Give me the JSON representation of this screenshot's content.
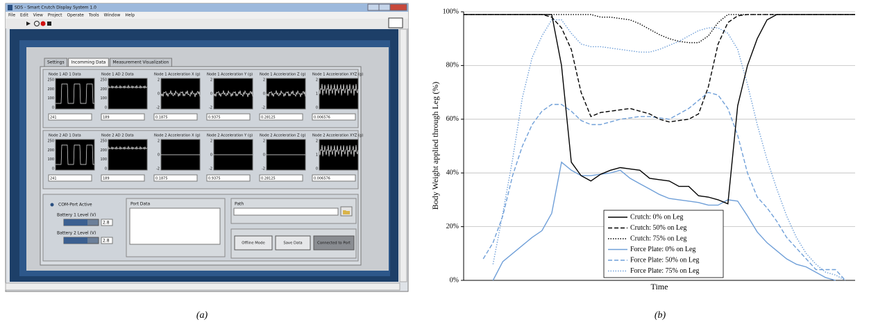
{
  "screenshot": {
    "window_title": "SDS - Smart Crutch Display System 1.0",
    "menu": [
      "File",
      "Edit",
      "View",
      "Project",
      "Operate",
      "Tools",
      "Window",
      "Help"
    ],
    "tabs": [
      "Settings",
      "Incomming Data",
      "Measurement Visualization"
    ],
    "nodes": [
      {
        "graphs": [
          {
            "title": "Node 1 AD 1 Data",
            "ticks": [
              250,
              200,
              100,
              0
            ],
            "value": 241
          },
          {
            "title": "Node 1 AD 2 Data",
            "ticks": [
              250,
              200,
              100,
              0
            ],
            "value": 189
          },
          {
            "title": "Node 1 Acceleration X (g)",
            "ticks": [
              2,
              0,
              -2
            ],
            "value": 0.1875
          },
          {
            "title": "Node 1 Acceleration Y (g)",
            "ticks": [
              2,
              0,
              -2
            ],
            "value": 0.9375
          },
          {
            "title": "Node 1 Acceleration Z (g)",
            "ticks": [
              2,
              0,
              -2
            ],
            "value": 0.28125
          },
          {
            "title": "Node 1 Acceleration XYZ (g)",
            "ticks": [
              2,
              1,
              0
            ],
            "value": 0.006576
          }
        ]
      },
      {
        "graphs": [
          {
            "title": "Node 2 AD 1 Data",
            "ticks": [
              250,
              200,
              100,
              0
            ],
            "value": 241
          },
          {
            "title": "Node 2 AD 2 Data",
            "ticks": [
              250,
              200,
              100,
              0
            ],
            "value": 189
          },
          {
            "title": "Node 2 Acceleration X (g)",
            "ticks": [
              2,
              0,
              -2
            ],
            "value": 0.1875
          },
          {
            "title": "Node 2 Acceleration Y (g)",
            "ticks": [
              2,
              0,
              -2
            ],
            "value": 0.9375
          },
          {
            "title": "Node 2 Acceleration Z (g)",
            "ticks": [
              2,
              0,
              -2
            ],
            "value": 0.28125
          },
          {
            "title": "Node 2 Acceleration XYZ (g)",
            "ticks": [
              2,
              1,
              0
            ],
            "value": 0.006576
          }
        ]
      }
    ],
    "com_port": "COM-Port Active",
    "battery1_label": "Battery 1 Level (V)",
    "battery1_value": 2.8,
    "battery2_label": "Battery 2 Level (V)",
    "battery2_value": 2.8,
    "port_data": "Port Data",
    "path": "Path",
    "buttons": [
      "Offline Mode",
      "Save Data",
      "Connected to Port"
    ]
  },
  "captions": [
    "(a)",
    "(b)"
  ],
  "chart_data": {
    "type": "line",
    "ylabel": "Body Weight applied through Leg (%)",
    "xlabel": "Time",
    "categories": [
      null,
      null,
      null,
      null,
      null,
      null,
      null,
      null,
      null,
      null,
      null,
      null,
      null,
      null,
      null,
      null,
      null,
      null,
      null,
      null,
      null,
      null,
      null,
      null,
      null,
      null,
      null,
      null,
      null,
      null,
      null,
      null,
      null,
      null,
      null,
      null,
      null,
      null,
      null,
      null,
      null
    ],
    "ylim": [
      0,
      100
    ],
    "yticks": [
      {
        "value": 0,
        "label": "0%"
      },
      {
        "value": 20,
        "label": "20%"
      },
      {
        "value": 40,
        "label": "40%"
      },
      {
        "value": 60,
        "label": "60%"
      },
      {
        "value": 80,
        "label": "80%"
      },
      {
        "value": 100,
        "label": "100%"
      }
    ],
    "grid": true,
    "legend": "lower center",
    "series": [
      {
        "name": "Crutch: 0% on Leg",
        "color": "#000000",
        "dash": "solid",
        "values": [
          99,
          99,
          99,
          99,
          99,
          99,
          99,
          99,
          99,
          99,
          80,
          44,
          39,
          37,
          39.5,
          41,
          42,
          41.5,
          41,
          38,
          37.5,
          37,
          35,
          35,
          31.5,
          31,
          30,
          28.5,
          65,
          80,
          90,
          97,
          99,
          99,
          99,
          99,
          99,
          99,
          99,
          99,
          99
        ]
      },
      {
        "name": "Crutch: 50% on Leg",
        "color": "#000000",
        "dash": "dashed",
        "values": [
          99,
          99,
          99,
          99,
          99,
          99,
          99,
          99,
          99,
          98,
          94,
          86,
          70,
          61,
          62.5,
          63,
          63.5,
          64,
          63,
          62,
          60,
          59,
          59.5,
          60,
          62,
          72,
          88,
          96,
          98.5,
          99,
          99,
          99,
          99,
          99,
          99,
          99,
          99,
          99,
          99,
          99,
          99
        ]
      },
      {
        "name": "Crutch: 75% on Leg",
        "color": "#000000",
        "dash": "dotted",
        "values": [
          99,
          99,
          99,
          99,
          99,
          99,
          99,
          99,
          99,
          99,
          99,
          99,
          99,
          99,
          98,
          98,
          97.5,
          97,
          95.5,
          93.5,
          91.5,
          90,
          89,
          88.5,
          88.5,
          91,
          96,
          99,
          99,
          99,
          99,
          99,
          99,
          99,
          99,
          99,
          99,
          99,
          99,
          99,
          99
        ]
      },
      {
        "name": "Force Plate: 0% on Leg",
        "color": "#6f9fd8",
        "dash": "solid",
        "values": [
          null,
          null,
          null,
          0,
          7,
          10,
          13,
          16,
          18.5,
          25,
          44,
          41,
          39,
          39,
          39.5,
          40,
          41,
          38,
          36,
          34,
          32,
          30.5,
          30,
          29.5,
          29,
          28,
          28,
          30,
          29.5,
          24,
          18,
          14,
          11,
          8,
          6,
          5,
          3,
          1,
          0,
          null,
          null
        ]
      },
      {
        "name": "Force Plate: 50% on Leg",
        "color": "#6f9fd8",
        "dash": "dashed",
        "values": [
          null,
          null,
          8,
          14,
          24,
          39,
          50,
          58,
          63,
          65.5,
          65.5,
          63,
          59.5,
          58,
          58,
          59,
          60,
          60.5,
          61,
          61,
          60.5,
          60,
          62,
          64,
          67,
          70,
          69,
          64,
          54,
          40,
          31,
          27,
          22,
          16,
          12,
          8,
          4,
          4,
          4,
          0,
          null
        ]
      },
      {
        "name": "Force Plate: 75% on Leg",
        "color": "#6f9fd8",
        "dash": "dotted",
        "values": [
          null,
          null,
          null,
          6,
          25,
          45,
          68,
          83,
          91,
          97,
          97,
          92,
          88,
          87,
          87,
          86.5,
          86,
          85.5,
          85,
          85,
          86,
          87.5,
          89,
          91,
          93,
          94,
          94,
          92,
          86,
          73,
          58,
          45,
          34,
          24,
          16,
          10,
          6,
          3,
          2,
          0,
          null
        ]
      }
    ]
  }
}
